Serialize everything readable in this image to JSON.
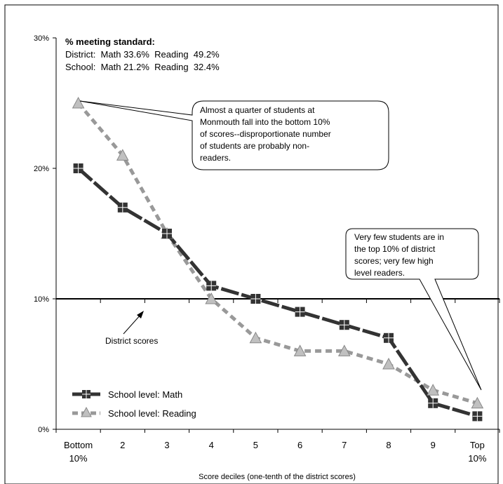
{
  "chart_data": {
    "type": "line",
    "xlabel": "Score deciles (one-tenth of the district scores)",
    "ylabel": "",
    "ylim": [
      0,
      30
    ],
    "yticks": [
      "0%",
      "10%",
      "20%",
      "30%"
    ],
    "categories": [
      "Bottom 10%",
      "2",
      "3",
      "4",
      "5",
      "6",
      "7",
      "8",
      "9",
      "Top 10%"
    ],
    "category_lines": [
      [
        "Bottom",
        "10%"
      ],
      [
        "2"
      ],
      [
        "3"
      ],
      [
        "4"
      ],
      [
        "5"
      ],
      [
        "6"
      ],
      [
        "7"
      ],
      [
        "8"
      ],
      [
        "9"
      ],
      [
        "Top",
        "10%"
      ]
    ],
    "series": [
      {
        "name": "School level: Math",
        "color": "#333333",
        "marker": "square",
        "values": [
          20,
          17,
          15,
          11,
          10,
          9,
          8,
          7,
          2,
          1
        ]
      },
      {
        "name": "School level: Reading",
        "color": "#999999",
        "marker": "triangle",
        "values": [
          25,
          21,
          15,
          10,
          7,
          6,
          6,
          5,
          3,
          2
        ]
      }
    ],
    "reference_line": {
      "value": 10,
      "label": "District scores"
    },
    "stats": {
      "title": "% meeting standard:",
      "lines": [
        "District:  Math 33.6%  Reading  49.2%",
        "School:  Math 21.2%  Reading  32.4%"
      ]
    },
    "callouts": [
      {
        "lines": [
          "Almost a quarter of students at",
          "Monmouth fall into the bottom 10%",
          "of scores--disproportionate number",
          "of students are probably non-",
          "readers."
        ]
      },
      {
        "lines": [
          "Very few students are in",
          "the top 10% of district",
          "scores; very few high",
          "level readers."
        ]
      }
    ],
    "legend_position": "bottom-left",
    "grid": false
  }
}
